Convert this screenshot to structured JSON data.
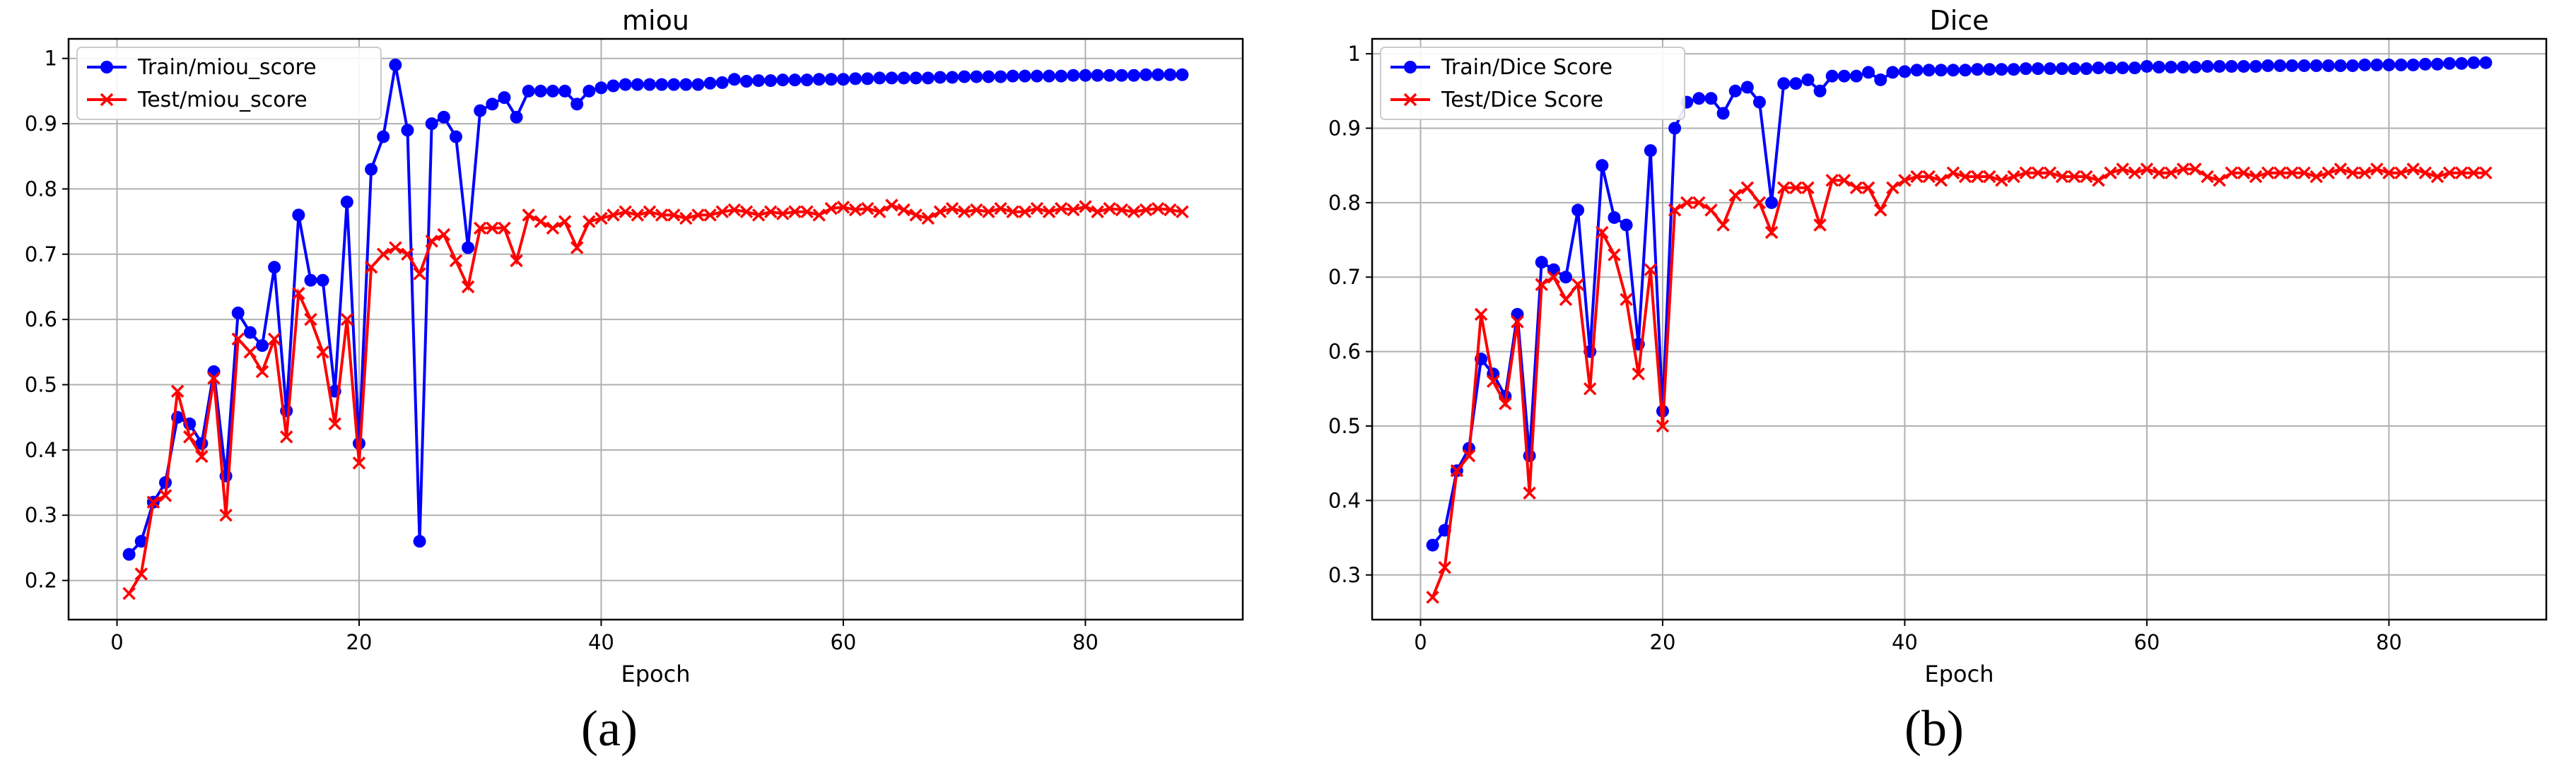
{
  "chart_data": [
    {
      "type": "line",
      "title": "miou",
      "xlabel": "Epoch",
      "ylabel": "",
      "xlim": [
        -4,
        93
      ],
      "ylim": [
        0.14,
        1.03
      ],
      "xticks": [
        0,
        20,
        40,
        60,
        80
      ],
      "yticks": [
        0.2,
        0.3,
        0.4,
        0.5,
        0.6,
        0.7,
        0.8,
        0.9,
        1.0
      ],
      "grid": true,
      "legend": "top-left",
      "series": [
        {
          "name": "Train/miou_score",
          "color": "#0000ff",
          "marker": "circle",
          "x": [
            1,
            2,
            3,
            4,
            5,
            6,
            7,
            8,
            9,
            10,
            11,
            12,
            13,
            14,
            15,
            16,
            17,
            18,
            19,
            20,
            21,
            22,
            23,
            24,
            25,
            26,
            27,
            28,
            29,
            30,
            31,
            32,
            33,
            34,
            35,
            36,
            37,
            38,
            39,
            40,
            41,
            42,
            43,
            44,
            45,
            46,
            47,
            48,
            49,
            50,
            51,
            52,
            53,
            54,
            55,
            56,
            57,
            58,
            59,
            60,
            61,
            62,
            63,
            64,
            65,
            66,
            67,
            68,
            69,
            70,
            71,
            72,
            73,
            74,
            75,
            76,
            77,
            78,
            79,
            80,
            81,
            82,
            83,
            84,
            85,
            86,
            87,
            88
          ],
          "y": [
            0.24,
            0.26,
            0.32,
            0.35,
            0.45,
            0.44,
            0.41,
            0.52,
            0.36,
            0.61,
            0.58,
            0.56,
            0.68,
            0.46,
            0.76,
            0.66,
            0.66,
            0.49,
            0.78,
            0.41,
            0.83,
            0.88,
            0.99,
            0.89,
            0.26,
            0.9,
            0.91,
            0.88,
            0.71,
            0.92,
            0.93,
            0.94,
            0.91,
            0.95,
            0.95,
            0.95,
            0.95,
            0.93,
            0.95,
            0.955,
            0.958,
            0.96,
            0.96,
            0.96,
            0.96,
            0.96,
            0.96,
            0.96,
            0.962,
            0.963,
            0.968,
            0.965,
            0.966,
            0.966,
            0.967,
            0.967,
            0.967,
            0.968,
            0.968,
            0.968,
            0.969,
            0.969,
            0.97,
            0.97,
            0.97,
            0.97,
            0.97,
            0.971,
            0.971,
            0.972,
            0.972,
            0.972,
            0.972,
            0.973,
            0.973,
            0.973,
            0.973,
            0.973,
            0.974,
            0.974,
            0.974,
            0.974,
            0.974,
            0.974,
            0.975,
            0.975,
            0.975,
            0.975
          ]
        },
        {
          "name": "Test/miou_score",
          "color": "#ff0000",
          "marker": "x",
          "x": [
            1,
            2,
            3,
            4,
            5,
            6,
            7,
            8,
            9,
            10,
            11,
            12,
            13,
            14,
            15,
            16,
            17,
            18,
            19,
            20,
            21,
            22,
            23,
            24,
            25,
            26,
            27,
            28,
            29,
            30,
            31,
            32,
            33,
            34,
            35,
            36,
            37,
            38,
            39,
            40,
            41,
            42,
            43,
            44,
            45,
            46,
            47,
            48,
            49,
            50,
            51,
            52,
            53,
            54,
            55,
            56,
            57,
            58,
            59,
            60,
            61,
            62,
            63,
            64,
            65,
            66,
            67,
            68,
            69,
            70,
            71,
            72,
            73,
            74,
            75,
            76,
            77,
            78,
            79,
            80,
            81,
            82,
            83,
            84,
            85,
            86,
            87,
            88
          ],
          "y": [
            0.18,
            0.21,
            0.32,
            0.33,
            0.49,
            0.42,
            0.39,
            0.51,
            0.3,
            0.57,
            0.55,
            0.52,
            0.57,
            0.42,
            0.64,
            0.6,
            0.55,
            0.44,
            0.6,
            0.38,
            0.68,
            0.7,
            0.71,
            0.7,
            0.67,
            0.72,
            0.73,
            0.69,
            0.65,
            0.74,
            0.74,
            0.74,
            0.69,
            0.76,
            0.75,
            0.74,
            0.75,
            0.71,
            0.75,
            0.755,
            0.76,
            0.765,
            0.76,
            0.765,
            0.76,
            0.76,
            0.755,
            0.76,
            0.76,
            0.765,
            0.768,
            0.765,
            0.76,
            0.765,
            0.762,
            0.765,
            0.765,
            0.76,
            0.77,
            0.772,
            0.768,
            0.77,
            0.765,
            0.775,
            0.768,
            0.76,
            0.755,
            0.765,
            0.77,
            0.765,
            0.768,
            0.765,
            0.77,
            0.765,
            0.765,
            0.77,
            0.765,
            0.77,
            0.768,
            0.773,
            0.765,
            0.77,
            0.768,
            0.765,
            0.768,
            0.77,
            0.768,
            0.765
          ]
        }
      ]
    },
    {
      "type": "line",
      "title": "Dice",
      "xlabel": "Epoch",
      "ylabel": "",
      "xlim": [
        -4,
        93
      ],
      "ylim": [
        0.24,
        1.02
      ],
      "xticks": [
        0,
        20,
        40,
        60,
        80
      ],
      "yticks": [
        0.3,
        0.4,
        0.5,
        0.6,
        0.7,
        0.8,
        0.9,
        1.0
      ],
      "grid": true,
      "legend": "top-left",
      "series": [
        {
          "name": "Train/Dice Score",
          "color": "#0000ff",
          "marker": "circle",
          "x": [
            1,
            2,
            3,
            4,
            5,
            6,
            7,
            8,
            9,
            10,
            11,
            12,
            13,
            14,
            15,
            16,
            17,
            18,
            19,
            20,
            21,
            22,
            23,
            24,
            25,
            26,
            27,
            28,
            29,
            30,
            31,
            32,
            33,
            34,
            35,
            36,
            37,
            38,
            39,
            40,
            41,
            42,
            43,
            44,
            45,
            46,
            47,
            48,
            49,
            50,
            51,
            52,
            53,
            54,
            55,
            56,
            57,
            58,
            59,
            60,
            61,
            62,
            63,
            64,
            65,
            66,
            67,
            68,
            69,
            70,
            71,
            72,
            73,
            74,
            75,
            76,
            77,
            78,
            79,
            80,
            81,
            82,
            83,
            84,
            85,
            86,
            87,
            88
          ],
          "y": [
            0.34,
            0.36,
            0.44,
            0.47,
            0.59,
            0.57,
            0.54,
            0.65,
            0.46,
            0.72,
            0.71,
            0.7,
            0.79,
            0.6,
            0.85,
            0.78,
            0.77,
            0.61,
            0.87,
            0.52,
            0.9,
            0.935,
            0.94,
            0.94,
            0.92,
            0.95,
            0.955,
            0.935,
            0.8,
            0.96,
            0.96,
            0.965,
            0.95,
            0.97,
            0.97,
            0.97,
            0.975,
            0.965,
            0.975,
            0.976,
            0.978,
            0.978,
            0.978,
            0.978,
            0.978,
            0.979,
            0.979,
            0.979,
            0.979,
            0.98,
            0.98,
            0.98,
            0.98,
            0.98,
            0.98,
            0.981,
            0.981,
            0.981,
            0.981,
            0.983,
            0.982,
            0.982,
            0.982,
            0.982,
            0.983,
            0.983,
            0.983,
            0.983,
            0.983,
            0.984,
            0.984,
            0.984,
            0.984,
            0.984,
            0.984,
            0.984,
            0.984,
            0.985,
            0.985,
            0.985,
            0.985,
            0.985,
            0.986,
            0.986,
            0.987,
            0.987,
            0.988,
            0.988
          ]
        },
        {
          "name": "Test/Dice Score",
          "color": "#ff0000",
          "marker": "x",
          "x": [
            1,
            2,
            3,
            4,
            5,
            6,
            7,
            8,
            9,
            10,
            11,
            12,
            13,
            14,
            15,
            16,
            17,
            18,
            19,
            20,
            21,
            22,
            23,
            24,
            25,
            26,
            27,
            28,
            29,
            30,
            31,
            32,
            33,
            34,
            35,
            36,
            37,
            38,
            39,
            40,
            41,
            42,
            43,
            44,
            45,
            46,
            47,
            48,
            49,
            50,
            51,
            52,
            53,
            54,
            55,
            56,
            57,
            58,
            59,
            60,
            61,
            62,
            63,
            64,
            65,
            66,
            67,
            68,
            69,
            70,
            71,
            72,
            73,
            74,
            75,
            76,
            77,
            78,
            79,
            80,
            81,
            82,
            83,
            84,
            85,
            86,
            87,
            88
          ],
          "y": [
            0.27,
            0.31,
            0.44,
            0.46,
            0.65,
            0.56,
            0.53,
            0.64,
            0.41,
            0.69,
            0.7,
            0.67,
            0.69,
            0.55,
            0.76,
            0.73,
            0.67,
            0.57,
            0.71,
            0.5,
            0.79,
            0.8,
            0.8,
            0.79,
            0.77,
            0.81,
            0.82,
            0.8,
            0.76,
            0.82,
            0.82,
            0.82,
            0.77,
            0.83,
            0.83,
            0.82,
            0.82,
            0.79,
            0.82,
            0.83,
            0.835,
            0.835,
            0.83,
            0.84,
            0.835,
            0.835,
            0.835,
            0.83,
            0.835,
            0.84,
            0.84,
            0.84,
            0.835,
            0.835,
            0.835,
            0.83,
            0.84,
            0.845,
            0.84,
            0.845,
            0.84,
            0.84,
            0.845,
            0.845,
            0.835,
            0.83,
            0.84,
            0.84,
            0.835,
            0.84,
            0.84,
            0.84,
            0.84,
            0.835,
            0.84,
            0.845,
            0.84,
            0.84,
            0.845,
            0.84,
            0.84,
            0.845,
            0.84,
            0.835,
            0.84,
            0.84,
            0.84,
            0.84
          ]
        }
      ]
    }
  ],
  "captions": {
    "a": "(a)",
    "b": "(b)"
  }
}
